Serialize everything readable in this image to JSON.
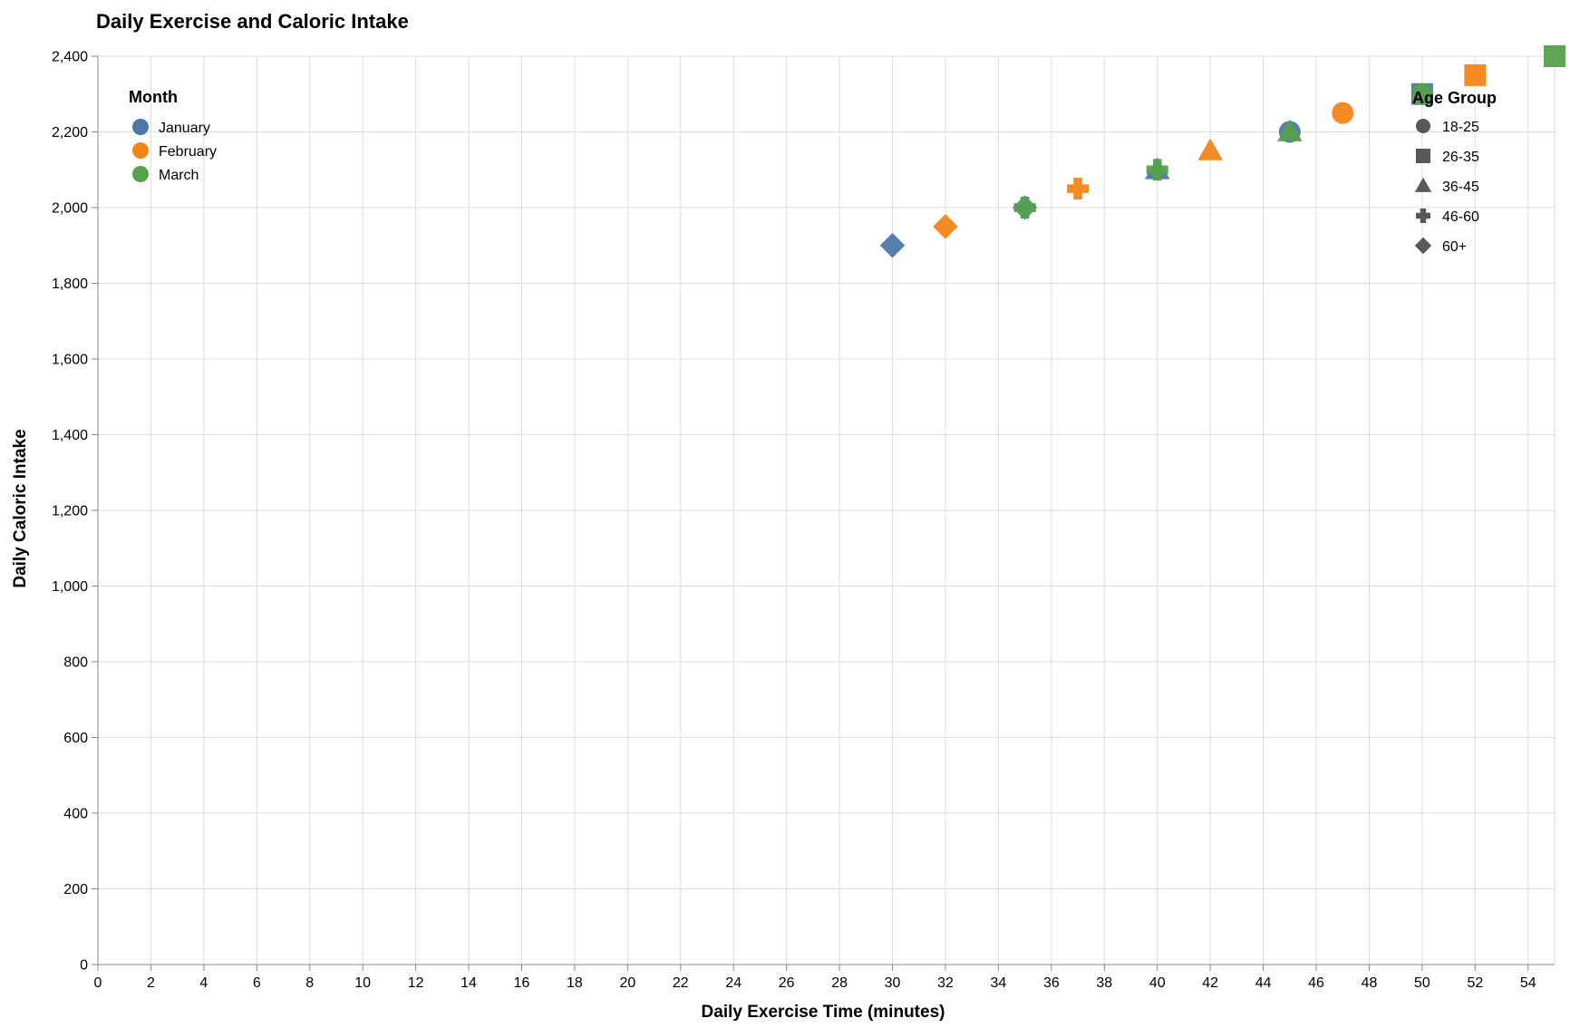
{
  "chart_data": {
    "type": "scatter",
    "title": "Daily Exercise and Caloric Intake",
    "xlabel": "Daily Exercise Time (minutes)",
    "ylabel": "Daily Caloric Intake",
    "xlim": [
      0,
      55
    ],
    "ylim": [
      0,
      2400
    ],
    "x_ticks": [
      "0",
      "2",
      "4",
      "6",
      "8",
      "10",
      "12",
      "14",
      "16",
      "18",
      "20",
      "22",
      "24",
      "26",
      "28",
      "30",
      "32",
      "34",
      "36",
      "38",
      "40",
      "42",
      "44",
      "46",
      "48",
      "50",
      "52",
      "54"
    ],
    "y_ticks": [
      "0",
      "200",
      "400",
      "600",
      "800",
      "1,000",
      "1,200",
      "1,400",
      "1,600",
      "1,800",
      "2,000",
      "2,200",
      "2,400"
    ],
    "grid": true,
    "color_legend": {
      "title": "Month",
      "placement": "top-left",
      "items": [
        {
          "label": "January",
          "color": "#4c78a8"
        },
        {
          "label": "February",
          "color": "#f58518"
        },
        {
          "label": "March",
          "color": "#54a24b"
        }
      ]
    },
    "shape_legend": {
      "title": "Age Group",
      "placement": "top-right",
      "items": [
        {
          "label": "18-25",
          "shape": "circle"
        },
        {
          "label": "26-35",
          "shape": "square"
        },
        {
          "label": "36-45",
          "shape": "triangle"
        },
        {
          "label": "46-60",
          "shape": "cross"
        },
        {
          "label": "60+",
          "shape": "diamond"
        }
      ]
    },
    "points": [
      {
        "month": "January",
        "age_group": "18-25",
        "x": 45,
        "y": 2200
      },
      {
        "month": "January",
        "age_group": "26-35",
        "x": 50,
        "y": 2300
      },
      {
        "month": "January",
        "age_group": "36-45",
        "x": 40,
        "y": 2100
      },
      {
        "month": "January",
        "age_group": "46-60",
        "x": 35,
        "y": 2000
      },
      {
        "month": "January",
        "age_group": "60+",
        "x": 30,
        "y": 1900
      },
      {
        "month": "February",
        "age_group": "18-25",
        "x": 47,
        "y": 2250
      },
      {
        "month": "February",
        "age_group": "26-35",
        "x": 52,
        "y": 2350
      },
      {
        "month": "February",
        "age_group": "36-45",
        "x": 42,
        "y": 2150
      },
      {
        "month": "February",
        "age_group": "46-60",
        "x": 37,
        "y": 2050
      },
      {
        "month": "February",
        "age_group": "60+",
        "x": 32,
        "y": 1950
      },
      {
        "month": "March",
        "age_group": "18-25",
        "x": 50,
        "y": 2300
      },
      {
        "month": "March",
        "age_group": "26-35",
        "x": 55,
        "y": 2400
      },
      {
        "month": "March",
        "age_group": "36-45",
        "x": 45,
        "y": 2200
      },
      {
        "month": "March",
        "age_group": "46-60",
        "x": 40,
        "y": 2100
      },
      {
        "month": "March",
        "age_group": "60+",
        "x": 35,
        "y": 2000
      }
    ]
  }
}
